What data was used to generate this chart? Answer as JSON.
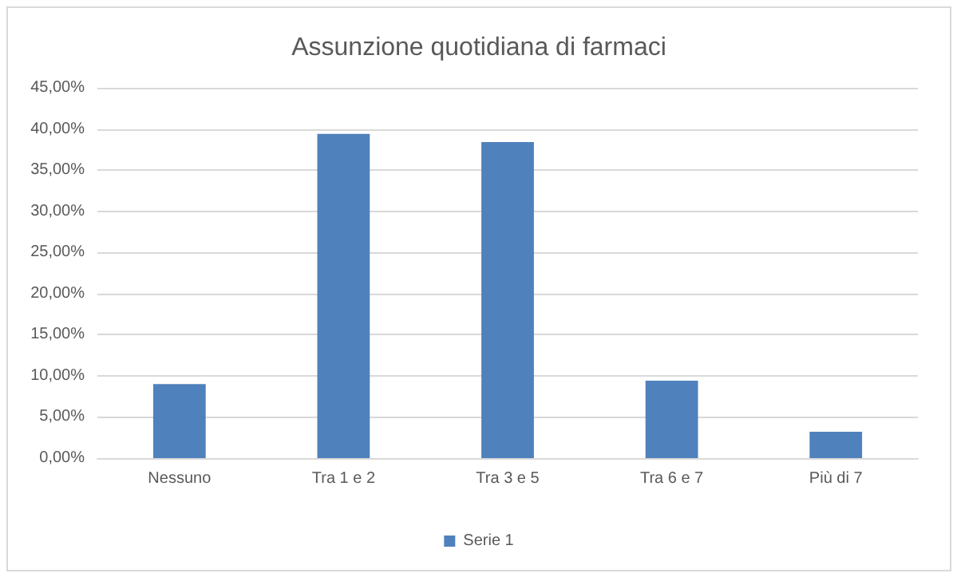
{
  "chart_data": {
    "type": "bar",
    "title": "Assunzione quotidiana di farmaci",
    "categories": [
      "Nessuno",
      "Tra 1 e 2",
      "Tra 3 e 5",
      "Tra 6 e 7",
      "Più di 7"
    ],
    "series": [
      {
        "name": "Serie 1",
        "color": "#4f81bd",
        "values": [
          9.0,
          39.4,
          38.4,
          9.4,
          3.2
        ]
      }
    ],
    "ylim": [
      0,
      45
    ],
    "yticks": [
      {
        "value": 0,
        "label": "0,00%"
      },
      {
        "value": 5,
        "label": "5,00%"
      },
      {
        "value": 10,
        "label": "10,00%"
      },
      {
        "value": 15,
        "label": "15,00%"
      },
      {
        "value": 20,
        "label": "20,00%"
      },
      {
        "value": 25,
        "label": "25,00%"
      },
      {
        "value": 30,
        "label": "30,00%"
      },
      {
        "value": 35,
        "label": "35,00%"
      },
      {
        "value": 40,
        "label": "40,00%"
      },
      {
        "value": 45,
        "label": "45,00%"
      }
    ],
    "grid": "y",
    "legend": "bottom"
  }
}
